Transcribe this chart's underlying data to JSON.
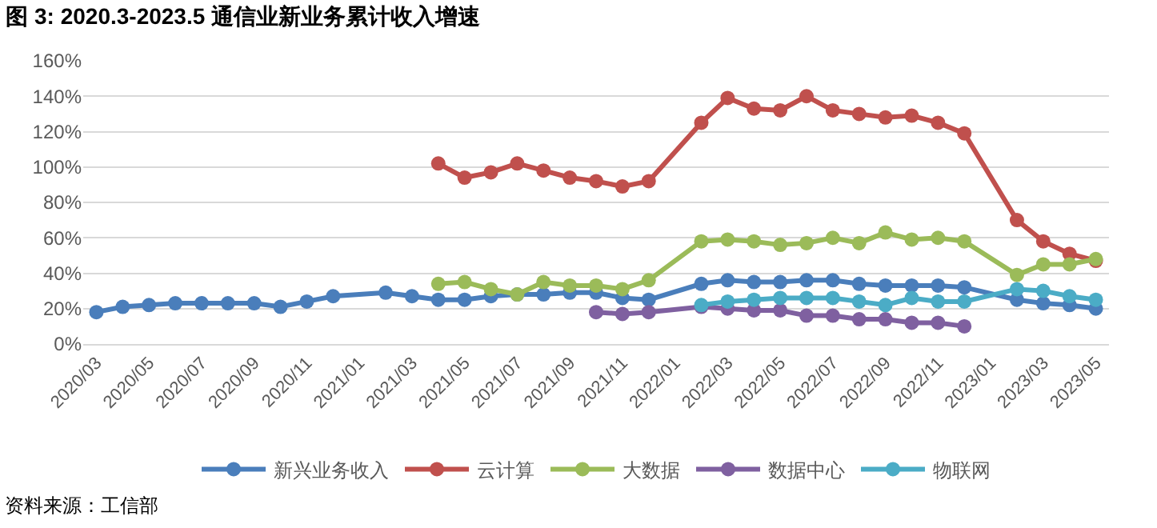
{
  "chart_data": {
    "type": "line",
    "title": "图 3: 2020.3-2023.5 通信业新业务累计收入增速",
    "categories": [
      "2020/03",
      null,
      "2020/05",
      null,
      "2020/07",
      null,
      "2020/09",
      null,
      "2020/11",
      null,
      "2021/01",
      null,
      "2021/03",
      null,
      "2021/05",
      null,
      "2021/07",
      null,
      "2021/09",
      null,
      "2021/11",
      null,
      "2022/01",
      null,
      "2022/03",
      null,
      "2022/05",
      null,
      "2022/07",
      null,
      "2022/09",
      null,
      "2022/11",
      null,
      "2023/01",
      null,
      "2023/03",
      null,
      "2023/05"
    ],
    "series": [
      {
        "name": "新兴业务收入",
        "color": "#4a7ebb",
        "values": [
          18,
          21,
          22,
          23,
          23,
          23,
          23,
          21,
          24,
          27,
          null,
          29,
          27,
          25,
          25,
          27,
          28,
          28,
          29,
          29,
          26,
          25,
          null,
          34,
          36,
          35,
          35,
          36,
          36,
          34,
          33,
          33,
          33,
          32,
          null,
          25,
          23,
          22,
          20
        ]
      },
      {
        "name": "云计算",
        "color": "#c0504d",
        "values": [
          null,
          null,
          null,
          null,
          null,
          null,
          null,
          null,
          null,
          null,
          null,
          null,
          null,
          102,
          94,
          97,
          102,
          98,
          94,
          92,
          89,
          92,
          null,
          125,
          139,
          133,
          132,
          140,
          132,
          130,
          128,
          129,
          125,
          119,
          null,
          70,
          58,
          51,
          47
        ]
      },
      {
        "name": "大数据",
        "color": "#9bbb59",
        "values": [
          null,
          null,
          null,
          null,
          null,
          null,
          null,
          null,
          null,
          null,
          null,
          null,
          null,
          34,
          35,
          31,
          28,
          35,
          33,
          33,
          31,
          36,
          null,
          58,
          59,
          58,
          56,
          57,
          60,
          57,
          63,
          59,
          60,
          58,
          null,
          39,
          45,
          45,
          48
        ]
      },
      {
        "name": "数据中心",
        "color": "#7f60a0",
        "values": [
          null,
          null,
          null,
          null,
          null,
          null,
          null,
          null,
          null,
          null,
          null,
          null,
          null,
          null,
          null,
          null,
          null,
          null,
          null,
          18,
          17,
          18,
          null,
          21,
          20,
          19,
          19,
          16,
          16,
          14,
          14,
          12,
          12,
          10,
          null,
          null,
          null,
          null,
          null
        ]
      },
      {
        "name": "物联网",
        "color": "#4bacc6",
        "values": [
          null,
          null,
          null,
          null,
          null,
          null,
          null,
          null,
          null,
          null,
          null,
          null,
          null,
          null,
          null,
          null,
          null,
          null,
          null,
          null,
          null,
          null,
          null,
          22,
          24,
          25,
          26,
          26,
          26,
          24,
          22,
          26,
          24,
          24,
          null,
          31,
          30,
          27,
          25
        ]
      }
    ],
    "ylim": [
      0,
      160
    ],
    "yticks": [
      {
        "value": 0,
        "label": "0%"
      },
      {
        "value": 20,
        "label": "20%"
      },
      {
        "value": 40,
        "label": "40%"
      },
      {
        "value": 60,
        "label": "60%"
      },
      {
        "value": 80,
        "label": "80%"
      },
      {
        "value": 100,
        "label": "100%"
      },
      {
        "value": 120,
        "label": "120%"
      },
      {
        "value": 140,
        "label": "140%"
      },
      {
        "value": 160,
        "label": "160%"
      }
    ],
    "grid": "y",
    "legend": "bottom",
    "marker": "circle",
    "line_style": "solid",
    "annotations": [
      "资料来源：工信部"
    ]
  }
}
